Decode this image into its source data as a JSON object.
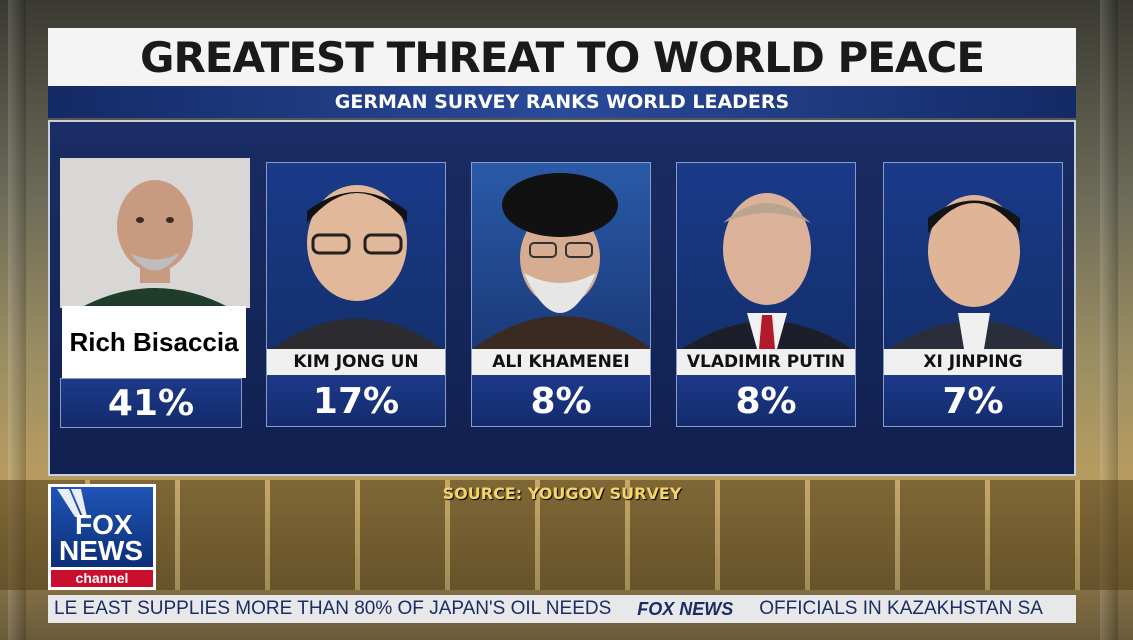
{
  "header": {
    "title": "GREATEST THREAT TO WORLD PEACE",
    "subtitle": "GERMAN SURVEY RANKS WORLD LEADERS"
  },
  "cards": [
    {
      "name": "Rich Bisaccia",
      "percent": "41%"
    },
    {
      "name": "KIM JONG UN",
      "percent": "17%"
    },
    {
      "name": "ALI KHAMENEI",
      "percent": "8%"
    },
    {
      "name": "VLADIMIR PUTIN",
      "percent": "8%"
    },
    {
      "name": "XI JINPING",
      "percent": "7%"
    }
  ],
  "source": "SOURCE: YOUGOV SURVEY",
  "logo": {
    "fox": "FOX",
    "news": "NEWS",
    "channel": "channel"
  },
  "ticker": {
    "left_text": "LE EAST SUPPLIES MORE THAN 80% OF JAPAN'S OIL NEEDS",
    "brand": "FOX NEWS",
    "right_text": "OFFICIALS IN KAZAKHSTAN SA"
  },
  "colors": {
    "panel_blue": "#1a2d64",
    "source_yellow": "#f5d46a",
    "fox_red": "#c8102e"
  }
}
